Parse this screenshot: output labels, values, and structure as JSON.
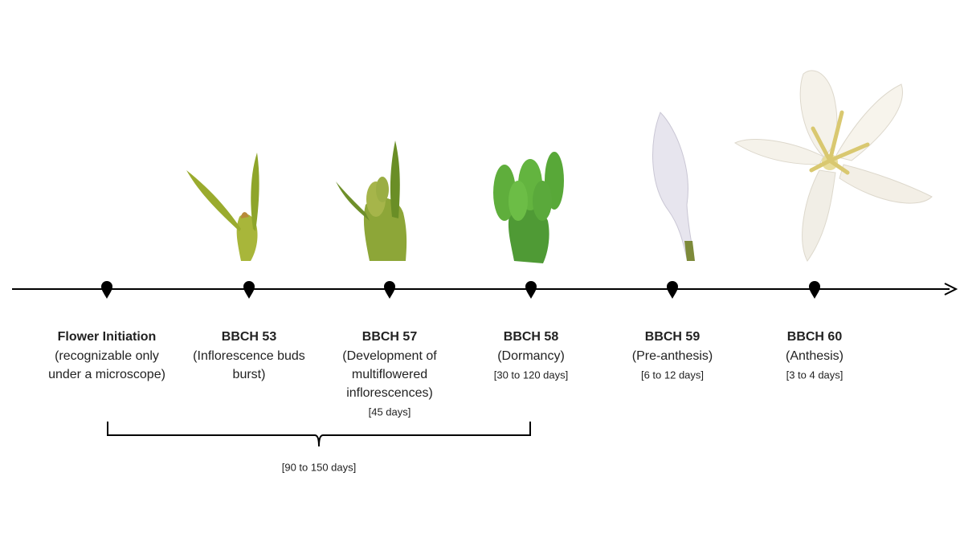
{
  "stages": [
    {
      "title": "Flower Initiation",
      "lines": [
        "(recognizable only",
        "under a microscope)"
      ]
    },
    {
      "title": "BBCH 53",
      "lines": [
        "(Inflorescence buds",
        "burst)"
      ]
    },
    {
      "title": "BBCH 57",
      "lines": [
        "(Development of",
        "multiflowered",
        "inflorescences)"
      ],
      "duration": "[45 days]"
    },
    {
      "title": "BBCH 58",
      "lines": [
        "(Dormancy)"
      ],
      "duration": "[30 to 120 days]"
    },
    {
      "title": "BBCH 59",
      "lines": [
        "(Pre-anthesis)"
      ],
      "duration": "[6 to 12 days]"
    },
    {
      "title": "BBCH 60",
      "lines": [
        "(Anthesis)"
      ],
      "duration": "[3 to 4 days]"
    }
  ],
  "bracket": {
    "label": "[90 to 150 days]"
  }
}
